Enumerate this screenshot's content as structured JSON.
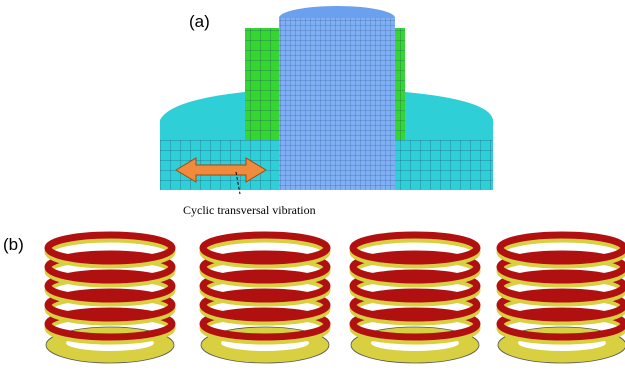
{
  "figure": {
    "panel_a_label": "(a)",
    "panel_b_label": "(b)",
    "annotation": "Cyclic transversal vibration"
  }
}
